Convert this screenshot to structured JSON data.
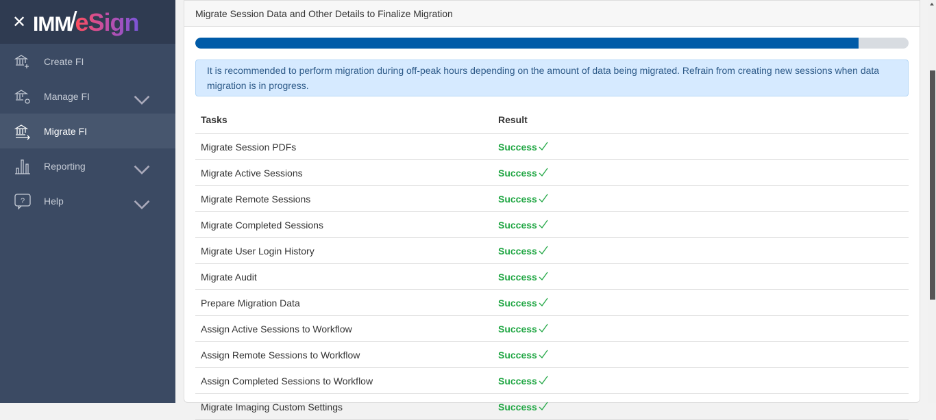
{
  "brand": {
    "logo_text_1": "IMM",
    "logo_text_2": "eSign"
  },
  "sidebar": {
    "items": [
      {
        "label": "Create FI",
        "icon": "bank-plus-icon"
      },
      {
        "label": "Manage FI",
        "icon": "bank-gear-icon",
        "expandable": true
      },
      {
        "label": "Migrate FI",
        "icon": "bank-arrow-icon",
        "active": true
      },
      {
        "label": "Reporting",
        "icon": "bar-chart-icon",
        "expandable": true
      },
      {
        "label": "Help",
        "icon": "help-bubble-icon",
        "expandable": true
      }
    ]
  },
  "card": {
    "title": "Migrate Session Data and Other Details to Finalize Migration",
    "progress_percent": 93,
    "alert": "It is recommended to perform migration during off-peak hours depending on the amount of data being migrated. Refrain from creating new sessions when data migration is in progress."
  },
  "table": {
    "headers": [
      "Tasks",
      "Result"
    ],
    "rows": [
      {
        "task": "Migrate Session PDFs",
        "result": "Success"
      },
      {
        "task": "Migrate Active Sessions",
        "result": "Success"
      },
      {
        "task": "Migrate Remote Sessions",
        "result": "Success"
      },
      {
        "task": "Migrate Completed Sessions",
        "result": "Success"
      },
      {
        "task": "Migrate User Login History",
        "result": "Success"
      },
      {
        "task": "Migrate Audit",
        "result": "Success"
      },
      {
        "task": "Prepare Migration Data",
        "result": "Success"
      },
      {
        "task": "Assign Active Sessions to Workflow",
        "result": "Success"
      },
      {
        "task": "Assign Remote Sessions to Workflow",
        "result": "Success"
      },
      {
        "task": "Assign Completed Sessions to Workflow",
        "result": "Success"
      },
      {
        "task": "Migrate Imaging Custom Settings",
        "result": "Success"
      }
    ]
  },
  "colors": {
    "success": "#22a745",
    "progress": "#005ba8",
    "sidebar": "#3b4a63"
  }
}
